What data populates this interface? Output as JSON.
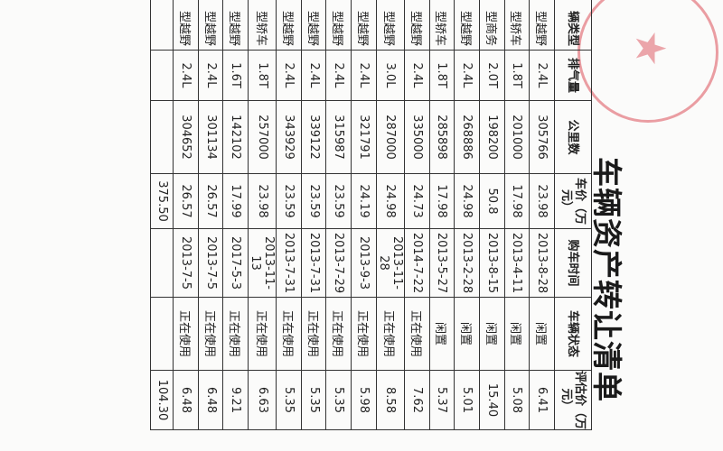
{
  "title": "车辆资产转让清单",
  "headers": [
    "辆类型",
    "排气量",
    "公里数",
    "车价（万元）",
    "购车时间",
    "车辆状态",
    "评估价（万元）"
  ],
  "rows": [
    [
      "型越野",
      "2.4L",
      "305766",
      "23.98",
      "2013-8-28",
      "闲置",
      "6.41"
    ],
    [
      "型轿车",
      "1.8T",
      "201000",
      "17.98",
      "2013-4-11",
      "闲置",
      "5.08"
    ],
    [
      "型商务",
      "2.0T",
      "198200",
      "50.8",
      "2013-8-15",
      "闲置",
      "15.40"
    ],
    [
      "型越野",
      "2.4L",
      "268886",
      "24.98",
      "2013-2-28",
      "闲置",
      "5.01"
    ],
    [
      "型轿车",
      "1.8T",
      "285898",
      "17.98",
      "2013-5-27",
      "闲置",
      "5.37"
    ],
    [
      "型越野",
      "2.4L",
      "335000",
      "24.73",
      "2014-7-22",
      "正在使用",
      "7.62"
    ],
    [
      "型越野",
      "3.0L",
      "287000",
      "24.98",
      "2013-11-28",
      "正在使用",
      "8.58"
    ],
    [
      "型越野",
      "2.4L",
      "321791",
      "24.19",
      "2013-9-3",
      "正在使用",
      "5.98"
    ],
    [
      "型越野",
      "2.4L",
      "315987",
      "23.59",
      "2013-7-29",
      "正在使用",
      "5.35"
    ],
    [
      "型越野",
      "2.4L",
      "339122",
      "23.59",
      "2013-7-31",
      "正在使用",
      "5.35"
    ],
    [
      "型越野",
      "2.4L",
      "343929",
      "23.59",
      "2013-7-31",
      "正在使用",
      "5.35"
    ],
    [
      "型轿车",
      "1.8T",
      "257000",
      "23.98",
      "2013-11-13",
      "正在使用",
      "6.63"
    ],
    [
      "型越野",
      "1.6T",
      "142102",
      "17.99",
      "2017-5-3",
      "正在使用",
      "9.21"
    ],
    [
      "型越野",
      "2.4L",
      "301134",
      "26.57",
      "2013-7-5",
      "正在使用",
      "6.48"
    ],
    [
      "型越野",
      "2.4L",
      "304652",
      "26.57",
      "2013-7-5",
      "正在使用",
      "6.48"
    ]
  ],
  "total": {
    "car_price": "375.50",
    "valuation": "104.30"
  },
  "stamp_color": "#dc505a"
}
